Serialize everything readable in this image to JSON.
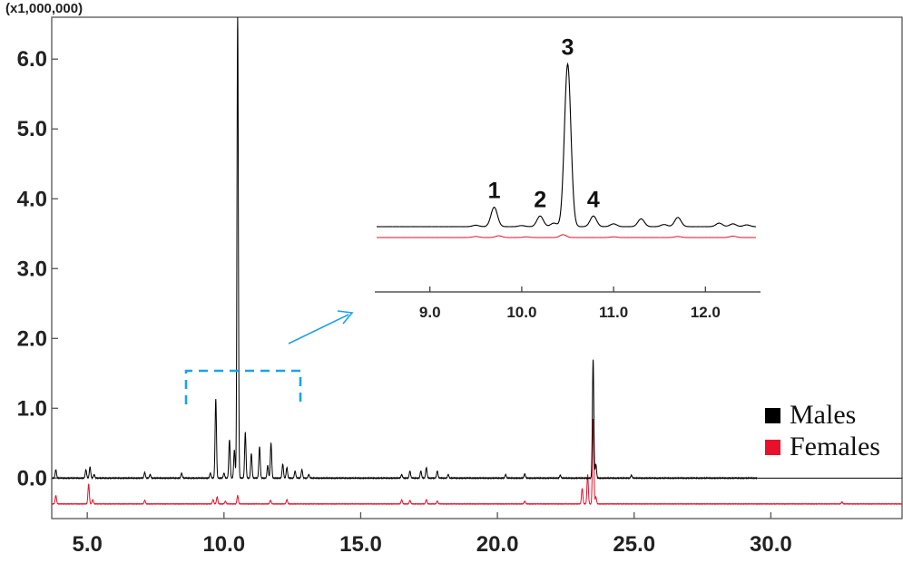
{
  "chart_data": {
    "type": "line",
    "y_multiplier_label": "(x1,000,000)",
    "xlim": [
      3.7,
      34.8
    ],
    "ylim": [
      -0.58,
      6.6
    ],
    "x_ticks": [
      5.0,
      10.0,
      15.0,
      20.0,
      25.0,
      30.0
    ],
    "x_tick_labels": [
      "5.0",
      "10.0",
      "15.0",
      "20.0",
      "25.0",
      "30.0"
    ],
    "y_ticks": [
      0.0,
      1.0,
      2.0,
      3.0,
      4.0,
      5.0,
      6.0
    ],
    "y_tick_labels": [
      "0.0",
      "1.0",
      "2.0",
      "3.0",
      "4.0",
      "5.0",
      "6.0"
    ],
    "grid": false,
    "legend_position": "bottom-right",
    "colors": {
      "males": "#000000",
      "females": "#e8102a",
      "annotation": "#1aa3e8"
    },
    "series": [
      {
        "name": "Males",
        "color": "#000000",
        "baseline": 0.0,
        "peaks": [
          [
            3.85,
            0.12
          ],
          [
            4.95,
            0.12
          ],
          [
            5.1,
            0.16
          ],
          [
            5.25,
            0.05
          ],
          [
            7.1,
            0.08
          ],
          [
            7.3,
            0.05
          ],
          [
            8.45,
            0.07
          ],
          [
            9.5,
            0.07
          ],
          [
            9.7,
            1.13
          ],
          [
            10.0,
            0.07
          ],
          [
            10.2,
            0.55
          ],
          [
            10.38,
            0.4
          ],
          [
            10.5,
            6.6
          ],
          [
            10.78,
            0.65
          ],
          [
            11.0,
            0.35
          ],
          [
            11.3,
            0.45
          ],
          [
            11.6,
            0.18
          ],
          [
            11.72,
            0.5
          ],
          [
            12.15,
            0.2
          ],
          [
            12.3,
            0.15
          ],
          [
            12.6,
            0.1
          ],
          [
            12.85,
            0.12
          ],
          [
            13.1,
            0.05
          ],
          [
            16.5,
            0.05
          ],
          [
            16.8,
            0.1
          ],
          [
            17.2,
            0.1
          ],
          [
            17.4,
            0.15
          ],
          [
            17.8,
            0.1
          ],
          [
            18.2,
            0.05
          ],
          [
            20.3,
            0.05
          ],
          [
            21.0,
            0.06
          ],
          [
            22.3,
            0.04
          ],
          [
            23.5,
            1.7
          ],
          [
            23.6,
            0.2
          ],
          [
            24.9,
            0.04
          ]
        ]
      },
      {
        "name": "Females",
        "color": "#e8102a",
        "baseline": -0.37,
        "peaks": [
          [
            3.85,
            0.12
          ],
          [
            5.05,
            0.28
          ],
          [
            5.2,
            0.06
          ],
          [
            7.1,
            0.05
          ],
          [
            9.6,
            0.06
          ],
          [
            9.75,
            0.1
          ],
          [
            10.05,
            0.04
          ],
          [
            10.5,
            0.12
          ],
          [
            11.7,
            0.05
          ],
          [
            12.3,
            0.06
          ],
          [
            16.5,
            0.06
          ],
          [
            16.8,
            0.05
          ],
          [
            17.4,
            0.06
          ],
          [
            17.8,
            0.04
          ],
          [
            21.0,
            0.04
          ],
          [
            23.1,
            0.22
          ],
          [
            23.3,
            0.42
          ],
          [
            23.5,
            1.22
          ],
          [
            23.6,
            0.1
          ],
          [
            32.6,
            0.03
          ]
        ]
      }
    ],
    "inset": {
      "xlim": [
        8.4,
        12.6
      ],
      "x_ticks": [
        9.0,
        10.0,
        11.0,
        12.0
      ],
      "x_tick_labels": [
        "9.0",
        "10.0",
        "11.0",
        "12.0"
      ],
      "peak_labels": [
        {
          "label": "1",
          "x": 9.7
        },
        {
          "label": "2",
          "x": 10.2
        },
        {
          "label": "3",
          "x": 10.5
        },
        {
          "label": "4",
          "x": 10.78
        }
      ],
      "males_peaks": [
        [
          9.5,
          0.04
        ],
        [
          9.7,
          0.55
        ],
        [
          10.0,
          0.03
        ],
        [
          10.2,
          0.3
        ],
        [
          10.35,
          0.1
        ],
        [
          10.5,
          4.6
        ],
        [
          10.78,
          0.3
        ],
        [
          11.0,
          0.08
        ],
        [
          11.3,
          0.22
        ],
        [
          11.55,
          0.06
        ],
        [
          11.7,
          0.26
        ],
        [
          12.15,
          0.1
        ],
        [
          12.3,
          0.08
        ],
        [
          12.45,
          0.05
        ]
      ],
      "females_peaks": [
        [
          9.5,
          0.03
        ],
        [
          9.75,
          0.05
        ],
        [
          10.05,
          0.02
        ],
        [
          10.45,
          0.08
        ],
        [
          11.0,
          0.02
        ],
        [
          11.7,
          0.03
        ],
        [
          12.3,
          0.04
        ]
      ]
    }
  }
}
